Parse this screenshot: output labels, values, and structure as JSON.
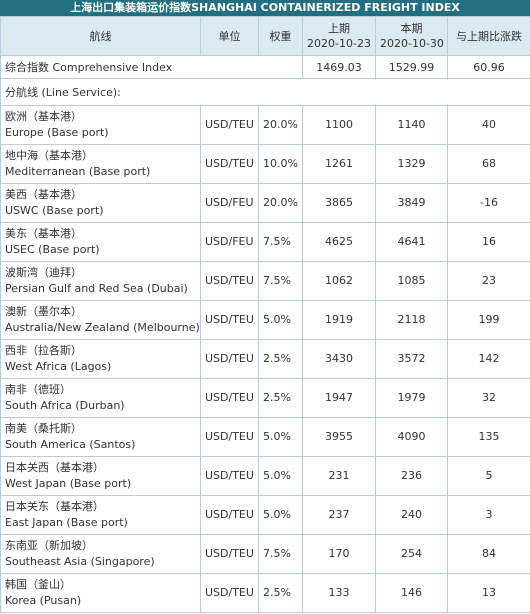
{
  "title": "上海出口集装箱运价指数SHANGHAI CONTAINERIZED FREIGHT INDEX",
  "header": {
    "route": "航线",
    "unit": "单位",
    "weight": "权重",
    "prev": {
      "label": "上期",
      "date": "2020-10-23"
    },
    "curr": {
      "label": "本期",
      "date": "2020-10-30"
    },
    "change": "与上期比涨跌"
  },
  "composite": {
    "name": "综合指数 Comprehensive Index",
    "prev": 1469.03,
    "curr": 1529.99,
    "change": 60.96
  },
  "service": "分航线 (Line Service):",
  "rows": [
    {
      "cn": "欧洲（基本港）",
      "en": "Europe (Base port)",
      "unit": "USD/TEU",
      "weight": "20.0%",
      "prev": 1100,
      "curr": 1140,
      "change": 40
    },
    {
      "cn": "地中海（基本港）",
      "en": "Mediterranean (Base port)",
      "unit": "USD/TEU",
      "weight": "10.0%",
      "prev": 1261,
      "curr": 1329,
      "change": 68
    },
    {
      "cn": "美西（基本港）",
      "en": "USWC (Base port)",
      "unit": "USD/FEU",
      "weight": "20.0%",
      "prev": 3865,
      "curr": 3849,
      "change": -16
    },
    {
      "cn": "美东（基本港）",
      "en": "USEC (Base port)",
      "unit": "USD/FEU",
      "weight": "7.5%",
      "prev": 4625,
      "curr": 4641,
      "change": 16
    },
    {
      "cn": "波斯湾（迪拜）",
      "en": "Persian Gulf and Red Sea (Dubai)",
      "unit": "USD/TEU",
      "weight": "7.5%",
      "prev": 1062,
      "curr": 1085,
      "change": 23
    },
    {
      "cn": "澳新（墨尔本）",
      "en": "Australia/New Zealand (Melbourne)",
      "unit": "USD/TEU",
      "weight": "5.0%",
      "prev": 1919,
      "curr": 2118,
      "change": 199
    },
    {
      "cn": "西非（拉各斯）",
      "en": "West Africa (Lagos)",
      "unit": "USD/TEU",
      "weight": "2.5%",
      "prev": 3430,
      "curr": 3572,
      "change": 142
    },
    {
      "cn": "南非（德班）",
      "en": "South Africa (Durban)",
      "unit": "USD/TEU",
      "weight": "2.5%",
      "prev": 1947,
      "curr": 1979,
      "change": 32
    },
    {
      "cn": "南美（桑托斯）",
      "en": "South America (Santos)",
      "unit": "USD/TEU",
      "weight": "5.0%",
      "prev": 3955,
      "curr": 4090,
      "change": 135
    },
    {
      "cn": "日本关西（基本港）",
      "en": "West Japan (Base port)",
      "unit": "USD/TEU",
      "weight": "5.0%",
      "prev": 231,
      "curr": 236,
      "change": 5
    },
    {
      "cn": "日本关东（基本港）",
      "en": "East Japan (Base port)",
      "unit": "USD/TEU",
      "weight": "5.0%",
      "prev": 237,
      "curr": 240,
      "change": 3
    },
    {
      "cn": "东南亚（新加坡）",
      "en": "Southeast Asia (Singapore)",
      "unit": "USD/TEU",
      "weight": "7.5%",
      "prev": 170,
      "curr": 254,
      "change": 84
    },
    {
      "cn": "韩国（釜山）",
      "en": "Korea (Pusan)",
      "unit": "USD/TEU",
      "weight": "2.5%",
      "prev": 133,
      "curr": 146,
      "change": 13
    }
  ]
}
